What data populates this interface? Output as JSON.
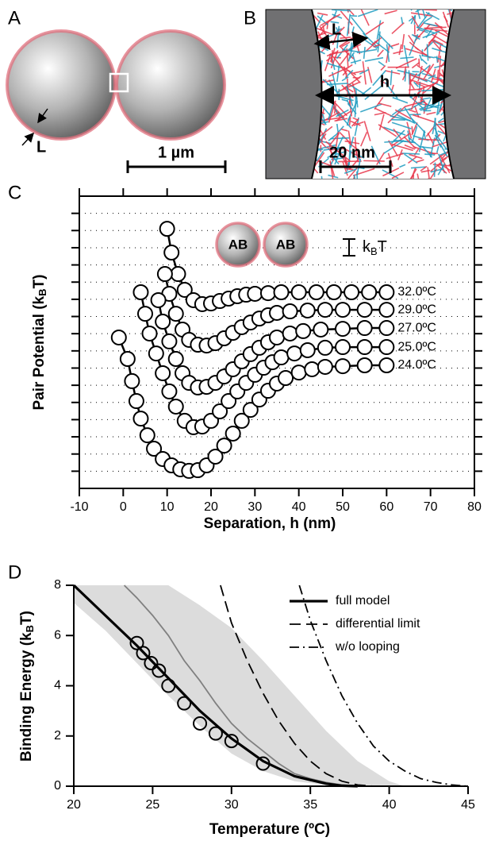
{
  "panels": {
    "A": {
      "letter": "A",
      "thickness_label": "L",
      "scale_label": "1 µm"
    },
    "B": {
      "letter": "B",
      "thickness_label": "L",
      "gap_label": "h",
      "scale_label": "20 nm"
    }
  },
  "chart_data": [
    {
      "type": "line",
      "panel": "C",
      "xlabel": "Separation, h (nm)",
      "ylabel": [
        "Pair Potential (k",
        "B",
        "T)"
      ],
      "inset": {
        "particles": [
          "AB",
          "AB"
        ],
        "scale_label": [
          "k",
          "B",
          "T"
        ]
      },
      "xlim": [
        -10,
        80
      ],
      "xticks": [
        -10,
        0,
        10,
        20,
        30,
        40,
        50,
        60,
        70,
        80
      ],
      "ylim": [
        0,
        17
      ],
      "yticks": [
        1,
        2,
        3,
        4,
        5,
        6,
        7,
        8,
        9,
        10,
        11,
        12,
        13,
        14,
        15,
        16
      ],
      "grid": "dotted",
      "markers": "open-circle",
      "series": [
        {
          "name": "32.0ºC",
          "color": "#000000",
          "x": [
            10,
            11,
            12.5,
            14,
            16,
            18,
            20,
            22,
            24,
            26,
            28,
            30,
            33,
            36,
            40,
            44,
            48,
            52,
            56,
            60
          ],
          "values": [
            15.1,
            13.72,
            12.47,
            11.55,
            10.95,
            10.72,
            10.76,
            10.9,
            11.04,
            11.18,
            11.27,
            11.32,
            11.36,
            11.41,
            11.41,
            11.41,
            11.41,
            11.41,
            11.41,
            11.41
          ]
        },
        {
          "name": "29.0ºC",
          "color": "#000000",
          "x": [
            9.5,
            10.5,
            12,
            13.5,
            15,
            17,
            19,
            21,
            23,
            25,
            27,
            29,
            31,
            33,
            35,
            38,
            42,
            46,
            50,
            55,
            60
          ],
          "values": [
            12.47,
            11.32,
            10.16,
            9.24,
            8.64,
            8.36,
            8.31,
            8.45,
            8.73,
            9.05,
            9.38,
            9.65,
            9.88,
            10.07,
            10.21,
            10.3,
            10.35,
            10.39,
            10.39,
            10.39,
            10.39
          ]
        },
        {
          "name": "27.0ºC",
          "color": "#000000",
          "x": [
            8,
            9,
            10.5,
            12,
            13.5,
            15,
            17,
            19,
            21,
            23,
            25,
            27,
            29,
            31,
            33,
            35,
            38,
            41,
            45,
            50,
            55,
            60
          ],
          "values": [
            10.95,
            9.7,
            8.55,
            7.53,
            6.7,
            6.14,
            5.87,
            5.91,
            6.14,
            6.51,
            6.93,
            7.39,
            7.81,
            8.18,
            8.5,
            8.78,
            9.01,
            9.15,
            9.24,
            9.28,
            9.33,
            9.33
          ]
        },
        {
          "name": "25.0ºC",
          "color": "#000000",
          "x": [
            4,
            5,
            6,
            7.5,
            9,
            10.5,
            12,
            14,
            16,
            18,
            20,
            22,
            24,
            26,
            28,
            30,
            32,
            34,
            36,
            39,
            42,
            46,
            50,
            55,
            60
          ],
          "values": [
            11.41,
            10.16,
            9.01,
            7.85,
            6.7,
            5.64,
            4.76,
            3.93,
            3.56,
            3.6,
            3.93,
            4.48,
            5.08,
            5.64,
            6.14,
            6.61,
            7.02,
            7.34,
            7.62,
            7.85,
            8.04,
            8.18,
            8.22,
            8.22,
            8.22
          ]
        },
        {
          "name": "24.0ºC",
          "color": "#000000",
          "x": [
            -1,
            1,
            2,
            3,
            4,
            5.5,
            7,
            9,
            11,
            13,
            15,
            17,
            19,
            21,
            23,
            25,
            27,
            29,
            31,
            33,
            35,
            37,
            40,
            43,
            46,
            50,
            55,
            60
          ],
          "values": [
            8.78,
            7.53,
            6.24,
            5.08,
            4.06,
            3.09,
            2.31,
            1.71,
            1.34,
            1.11,
            1.02,
            1.06,
            1.34,
            1.85,
            2.49,
            3.19,
            3.93,
            4.57,
            5.17,
            5.68,
            6.1,
            6.42,
            6.74,
            6.93,
            7.07,
            7.11,
            7.16,
            7.16
          ]
        }
      ]
    },
    {
      "type": "line",
      "panel": "D",
      "xlabel": "Temperature (ºC)",
      "ylabel": [
        "Binding Energy (k",
        "B",
        "T)"
      ],
      "xlim": [
        20,
        45
      ],
      "xticks": [
        20,
        25,
        30,
        35,
        40,
        45
      ],
      "ylim": [
        0,
        8
      ],
      "yticks": [
        0,
        2,
        4,
        6,
        8
      ],
      "legend": "top-right",
      "band": {
        "color": "#dcdcdc",
        "x": [
          20,
          22,
          24,
          26,
          28,
          30,
          32,
          34,
          36,
          38,
          40,
          41
        ],
        "low": [
          7.3,
          6.2,
          4.9,
          3.6,
          2.4,
          1.3,
          0.6,
          0.2,
          0.05,
          0,
          0,
          0
        ],
        "high": [
          8,
          8,
          8,
          8,
          7.2,
          6.3,
          5,
          3.6,
          2.2,
          1,
          0.2,
          0
        ]
      },
      "series": [
        {
          "color": "#808080",
          "style": "solid",
          "x": [
            23.2,
            24,
            25,
            26,
            27,
            28,
            29,
            30,
            31,
            32,
            33,
            34,
            35,
            36,
            37,
            38
          ],
          "values": [
            8,
            7.5,
            6.8,
            6,
            5,
            4.2,
            3.3,
            2.5,
            1.9,
            1.4,
            0.9,
            0.5,
            0.3,
            0.15,
            0.05,
            0
          ]
        },
        {
          "name": "full model",
          "color": "#000000",
          "style": "solid",
          "x": [
            20,
            22,
            24,
            26,
            28,
            30,
            32,
            34,
            36,
            37,
            38
          ],
          "values": [
            8,
            6.8,
            5.6,
            4.3,
            3,
            1.9,
            1,
            0.4,
            0.1,
            0.02,
            0
          ]
        },
        {
          "name": "differential limit",
          "color": "#000000",
          "style": "dashed",
          "x": [
            29.3,
            30,
            31,
            32,
            33,
            34,
            35,
            36,
            37,
            38,
            39
          ],
          "values": [
            8,
            6.5,
            5,
            3.7,
            2.6,
            1.7,
            1,
            0.5,
            0.2,
            0.05,
            0
          ]
        },
        {
          "name": "w/o looping",
          "color": "#000000",
          "style": "dashdot",
          "x": [
            34.3,
            35,
            36,
            37,
            38,
            39,
            40,
            41,
            42,
            43,
            44,
            45
          ],
          "values": [
            8,
            6.6,
            5,
            3.6,
            2.5,
            1.6,
            1,
            0.6,
            0.3,
            0.15,
            0.05,
            0
          ]
        }
      ],
      "points": {
        "color": "#000000",
        "x": [
          24,
          24.4,
          24.9,
          25.4,
          26,
          27,
          28,
          29,
          30,
          32
        ],
        "values": [
          5.7,
          5.3,
          4.9,
          4.6,
          4,
          3.3,
          2.5,
          2.1,
          1.8,
          0.9
        ]
      }
    }
  ]
}
